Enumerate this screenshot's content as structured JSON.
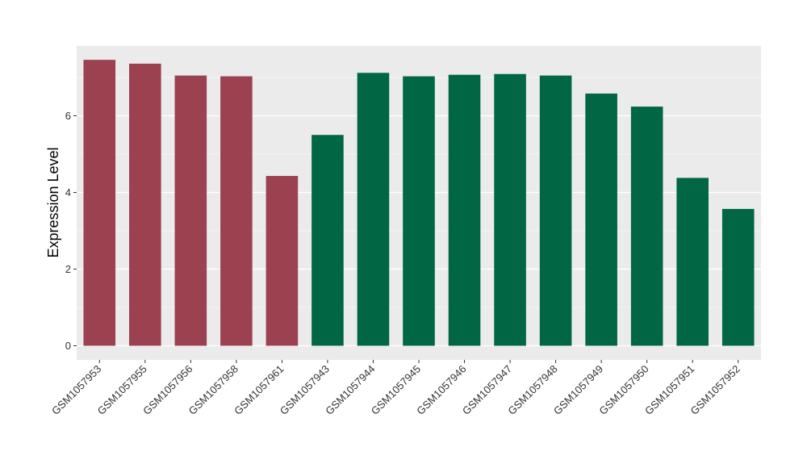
{
  "chart_data": {
    "type": "bar",
    "title": "",
    "xlabel": "",
    "ylabel": "Expression Level",
    "ylim": [
      0,
      7.8
    ],
    "yticks": [
      0,
      2,
      4,
      6
    ],
    "grid": true,
    "legend": "none",
    "categories": [
      "GSM1057953",
      "GSM1057955",
      "GSM1057956",
      "GSM1057958",
      "GSM1057961",
      "GSM1057943",
      "GSM1057944",
      "GSM1057945",
      "GSM1057946",
      "GSM1057947",
      "GSM1057948",
      "GSM1057949",
      "GSM1057950",
      "GSM1057951",
      "GSM1057952"
    ],
    "values": [
      7.46,
      7.36,
      7.05,
      7.03,
      4.43,
      5.5,
      7.12,
      7.03,
      7.07,
      7.09,
      7.05,
      6.58,
      6.24,
      4.38,
      3.57
    ],
    "groups": [
      0,
      0,
      0,
      0,
      0,
      1,
      1,
      1,
      1,
      1,
      1,
      1,
      1,
      1,
      1
    ],
    "group_colors": [
      "#9B4150",
      "#006644"
    ],
    "panel_color": "#EBEBEB",
    "grid_color": "#FFFFFF"
  }
}
